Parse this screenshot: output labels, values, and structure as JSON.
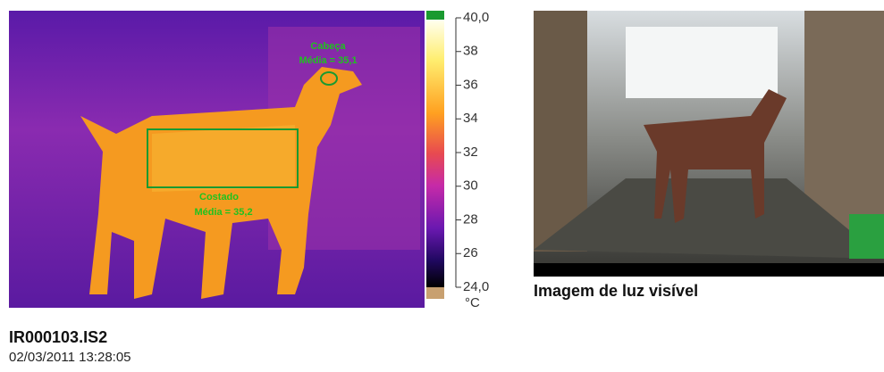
{
  "thermal": {
    "annotations": [
      {
        "label": "Cabeça",
        "mean": "Média = 35,1"
      },
      {
        "label": "Costado",
        "mean": "Média = 35,2"
      }
    ],
    "scale": {
      "ticks": [
        "40,0",
        "38",
        "36",
        "34",
        "32",
        "30",
        "28",
        "26",
        "24,0"
      ],
      "unit": "°C"
    },
    "file": "IR000103.IS2",
    "timestamp": "02/03/2011 13:28:05"
  },
  "photo": {
    "caption": "Imagem de luz visível"
  }
}
